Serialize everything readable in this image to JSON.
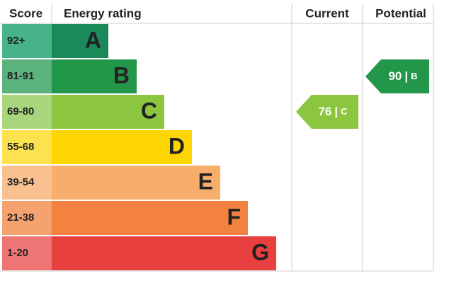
{
  "header": {
    "score": "Score",
    "rating": "Energy rating",
    "current": "Current",
    "potential": "Potential"
  },
  "bands": [
    {
      "score": "92+",
      "letter": "A",
      "color": "#1b8a5a",
      "score_color": "#46b38a"
    },
    {
      "score": "81-91",
      "letter": "B",
      "color": "#229649",
      "score_color": "#5bb27c"
    },
    {
      "score": "69-80",
      "letter": "C",
      "color": "#8cc63f",
      "score_color": "#a9d67c"
    },
    {
      "score": "55-68",
      "letter": "D",
      "color": "#fdd500",
      "score_color": "#fde24f"
    },
    {
      "score": "39-54",
      "letter": "E",
      "color": "#f8ae6b",
      "score_color": "#f9c190"
    },
    {
      "score": "21-38",
      "letter": "F",
      "color": "#f3813f",
      "score_color": "#f5a170"
    },
    {
      "score": "1-20",
      "letter": "G",
      "color": "#e8403f",
      "score_color": "#ef7574"
    }
  ],
  "separator": "|",
  "current": {
    "value": 76,
    "letter": "C",
    "color": "#8cc63f"
  },
  "potential": {
    "value": 90,
    "letter": "B",
    "color": "#229649"
  }
}
